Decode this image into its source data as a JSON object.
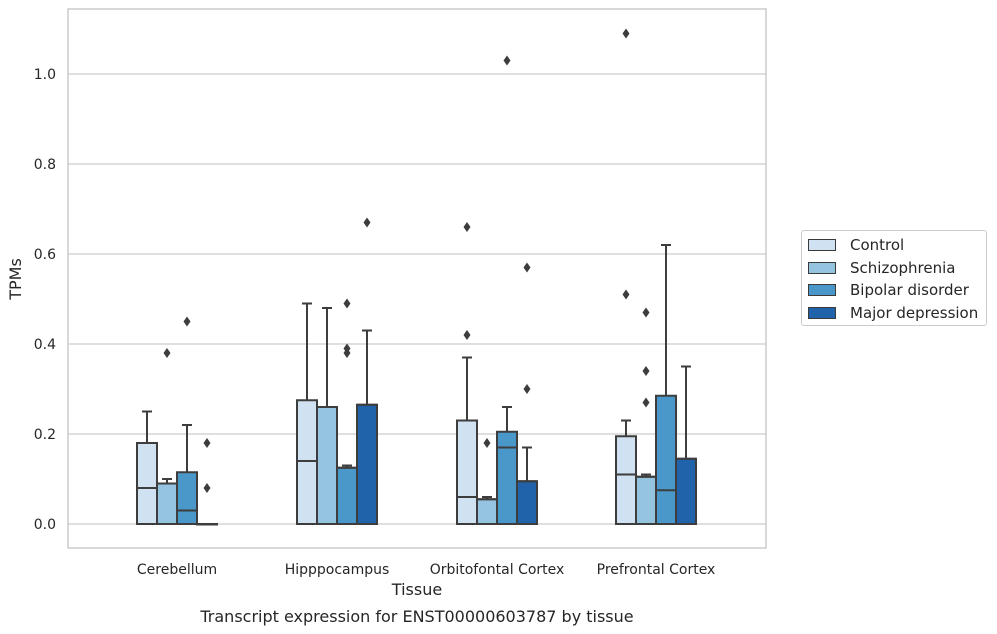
{
  "chart_data": {
    "type": "box",
    "title": "Transcript expression for ENST00000603787 by tissue",
    "xlabel": "Tissue",
    "ylabel": "TPMs",
    "ylim": [
      -0.05,
      1.145
    ],
    "yticks": [
      0.0,
      0.2,
      0.4,
      0.6,
      0.8,
      1.0
    ],
    "ytick_labels": [
      "0.0",
      "0.2",
      "0.4",
      "0.6",
      "0.8",
      "1.0"
    ],
    "categories": [
      "Cerebellum",
      "Hipppocampus",
      "Orbitofontal Cortex",
      "Prefrontal Cortex"
    ],
    "grid": "horizontal",
    "legend_position": "right",
    "series": [
      {
        "name": "Control",
        "color": "#d0e1f2",
        "boxes": [
          {
            "q1": 0.0,
            "median": 0.08,
            "q3": 0.18,
            "whisker_low": 0.0,
            "whisker_high": 0.25,
            "outliers": []
          },
          {
            "q1": 0.0,
            "median": 0.14,
            "q3": 0.275,
            "whisker_low": 0.0,
            "whisker_high": 0.49,
            "outliers": []
          },
          {
            "q1": 0.0,
            "median": 0.06,
            "q3": 0.23,
            "whisker_low": 0.0,
            "whisker_high": 0.37,
            "outliers": [
              0.42,
              0.66
            ]
          },
          {
            "q1": 0.0,
            "median": 0.11,
            "q3": 0.195,
            "whisker_low": 0.0,
            "whisker_high": 0.23,
            "outliers": [
              0.51,
              1.09
            ]
          }
        ]
      },
      {
        "name": "Schizophrenia",
        "color": "#94c4df",
        "boxes": [
          {
            "q1": 0.0,
            "median": 0.09,
            "q3": 0.09,
            "whisker_low": 0.0,
            "whisker_high": 0.1,
            "outliers": [
              0.38
            ]
          },
          {
            "q1": 0.0,
            "median": 0.26,
            "q3": 0.26,
            "whisker_low": 0.0,
            "whisker_high": 0.48,
            "outliers": []
          },
          {
            "q1": 0.0,
            "median": 0.055,
            "q3": 0.055,
            "whisker_low": 0.0,
            "whisker_high": 0.06,
            "outliers": [
              0.18
            ]
          },
          {
            "q1": 0.0,
            "median": 0.105,
            "q3": 0.105,
            "whisker_low": 0.0,
            "whisker_high": 0.11,
            "outliers": [
              0.27,
              0.34,
              0.47
            ]
          }
        ]
      },
      {
        "name": "Bipolar disorder",
        "color": "#4a98c9",
        "boxes": [
          {
            "q1": 0.0,
            "median": 0.03,
            "q3": 0.115,
            "whisker_low": 0.0,
            "whisker_high": 0.22,
            "outliers": [
              0.45
            ]
          },
          {
            "q1": 0.0,
            "median": 0.125,
            "q3": 0.125,
            "whisker_low": 0.0,
            "whisker_high": 0.13,
            "outliers": [
              0.38,
              0.39,
              0.49
            ]
          },
          {
            "q1": 0.0,
            "median": 0.17,
            "q3": 0.205,
            "whisker_low": 0.0,
            "whisker_high": 0.26,
            "outliers": [
              1.03
            ]
          },
          {
            "q1": 0.0,
            "median": 0.075,
            "q3": 0.285,
            "whisker_low": 0.0,
            "whisker_high": 0.62,
            "outliers": []
          }
        ]
      },
      {
        "name": "Major depression",
        "color": "#2163aa",
        "boxes": [
          {
            "q1": 0.0,
            "median": 0.0,
            "q3": 0.0,
            "whisker_low": 0.0,
            "whisker_high": 0.0,
            "outliers": [
              0.08,
              0.18
            ]
          },
          {
            "q1": 0.0,
            "median": 0.265,
            "q3": 0.265,
            "whisker_low": 0.0,
            "whisker_high": 0.43,
            "outliers": [
              0.67
            ]
          },
          {
            "q1": 0.0,
            "median": 0.095,
            "q3": 0.095,
            "whisker_low": 0.0,
            "whisker_high": 0.17,
            "outliers": [
              0.3,
              0.57
            ]
          },
          {
            "q1": 0.0,
            "median": 0.145,
            "q3": 0.145,
            "whisker_low": 0.0,
            "whisker_high": 0.35,
            "outliers": []
          }
        ]
      }
    ]
  }
}
